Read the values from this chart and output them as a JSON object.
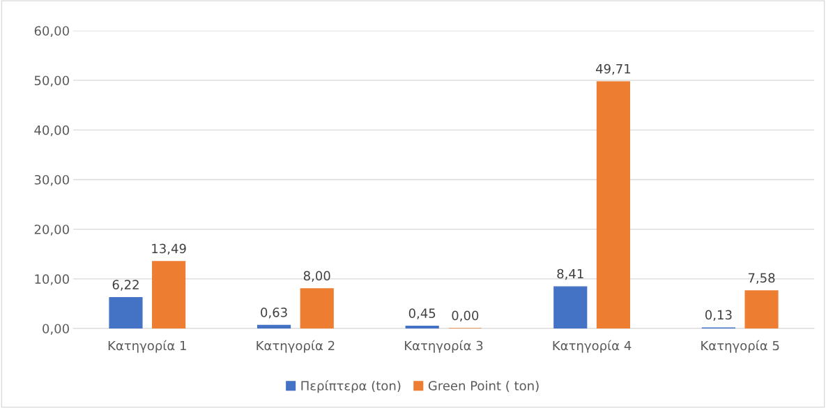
{
  "chart_data": {
    "type": "bar",
    "categories": [
      "Κατηγορία 1",
      "Κατηγορία 2",
      "Κατηγορία 3",
      "Κατηγορία 4",
      "Κατηγορία 5"
    ],
    "series": [
      {
        "name": "Περίπτερα (ton)",
        "color": "#4472c4",
        "values": [
          6.22,
          0.63,
          0.45,
          8.41,
          0.13
        ],
        "value_labels": [
          "6,22",
          "0,63",
          "0,45",
          "8,41",
          "0,13"
        ]
      },
      {
        "name": "Green Point ( ton)",
        "color": "#ed7d31",
        "values": [
          13.49,
          8.0,
          0.0,
          49.71,
          7.58
        ],
        "value_labels": [
          "13,49",
          "8,00",
          "0,00",
          "49,71",
          "7,58"
        ]
      }
    ],
    "ylim": [
      0,
      60
    ],
    "yticks": [
      {
        "value": 0,
        "label": "0,00"
      },
      {
        "value": 10,
        "label": "10,00"
      },
      {
        "value": 20,
        "label": "20,00"
      },
      {
        "value": 30,
        "label": "30,00"
      },
      {
        "value": 40,
        "label": "40,00"
      },
      {
        "value": 50,
        "label": "50,00"
      },
      {
        "value": 60,
        "label": "60,00"
      }
    ],
    "grid": "y",
    "legend": "bottom"
  }
}
